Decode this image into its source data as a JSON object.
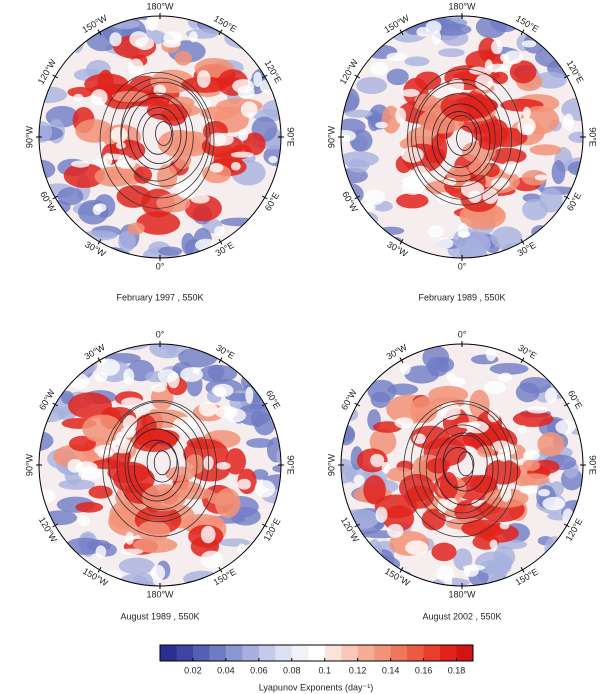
{
  "panels": [
    {
      "caption": "February 1997 , 550K",
      "labels": [
        "180°W",
        "150°E",
        "120°E",
        "90°E",
        "60°E",
        "30°E",
        "0°",
        "30°W",
        "60°W",
        "90°W",
        "120°W",
        "150°W"
      ]
    },
    {
      "caption": "February 1989 , 550K",
      "labels": [
        "180°W",
        "150°E",
        "120°E",
        "90°E",
        "60°E",
        "30°E",
        "0°",
        "30°W",
        "60°W",
        "90°W",
        "120°W",
        "150°W"
      ]
    },
    {
      "caption": "August  1989 , 550K",
      "labels": [
        "0°",
        "30°E",
        "60°E",
        "90°E",
        "120°E",
        "150°E",
        "180°W",
        "150°W",
        "120°W",
        "90°W",
        "60°W",
        "30°W"
      ]
    },
    {
      "caption": "August  2002 , 550K",
      "labels": [
        "0°",
        "30°E",
        "60°E",
        "90°E",
        "120°E",
        "150°E",
        "180°W",
        "150°W",
        "120°W",
        "90°W",
        "60°W",
        "30°W"
      ]
    }
  ],
  "colorbar": {
    "label": "Lyapunov Exponents (day⁻¹)",
    "lim": [
      0,
      0.19
    ],
    "ticks": [
      0.02,
      0.04,
      0.06,
      0.08,
      0.1,
      0.12,
      0.14,
      0.16,
      0.18
    ],
    "colors": [
      "#2b2f8f",
      "#3d44a3",
      "#5560b5",
      "#6f7cc4",
      "#8b97d2",
      "#a7b1df",
      "#c3caea",
      "#dde1f3",
      "#f2f3fa",
      "#ffffff",
      "#fbe3dc",
      "#f8c9bb",
      "#f5ad98",
      "#f29278",
      "#ef775a",
      "#ec5b3f",
      "#e83e2a",
      "#e0231c",
      "#d41414"
    ]
  }
}
